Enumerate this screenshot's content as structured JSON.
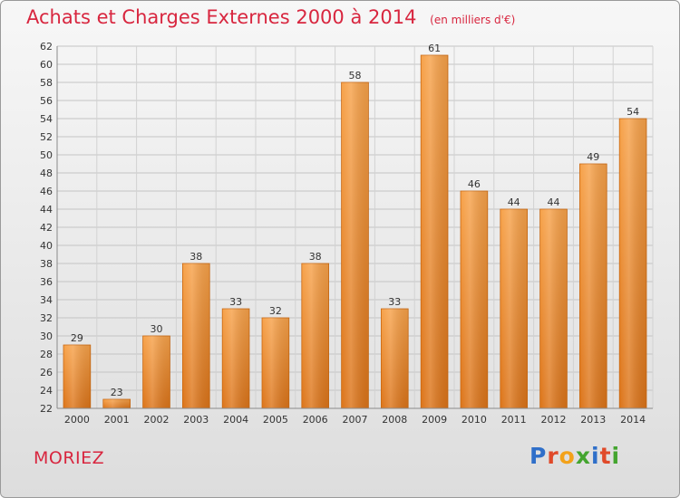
{
  "header": {
    "title": "Achats et Charges Externes 2000 à 2014",
    "subtitle": "(en milliers d'€)"
  },
  "footer": {
    "commune": "MORIEZ",
    "logo": "Proxiti"
  },
  "chart_data": {
    "type": "bar",
    "title": "Achats et Charges Externes 2000 à 2014",
    "subtitle": "(en milliers d'€)",
    "categories": [
      "2000",
      "2001",
      "2002",
      "2003",
      "2004",
      "2005",
      "2006",
      "2007",
      "2008",
      "2009",
      "2010",
      "2011",
      "2012",
      "2013",
      "2014"
    ],
    "values": [
      29,
      23,
      30,
      38,
      33,
      32,
      38,
      58,
      33,
      61,
      46,
      44,
      44,
      49,
      54
    ],
    "ylim": [
      22,
      62
    ],
    "yticks": [
      22,
      24,
      26,
      28,
      30,
      32,
      34,
      36,
      38,
      40,
      42,
      44,
      46,
      48,
      50,
      52,
      54,
      56,
      58,
      60,
      62
    ],
    "grid": true,
    "bar_color": "#f08a2c",
    "data_labels": true
  }
}
